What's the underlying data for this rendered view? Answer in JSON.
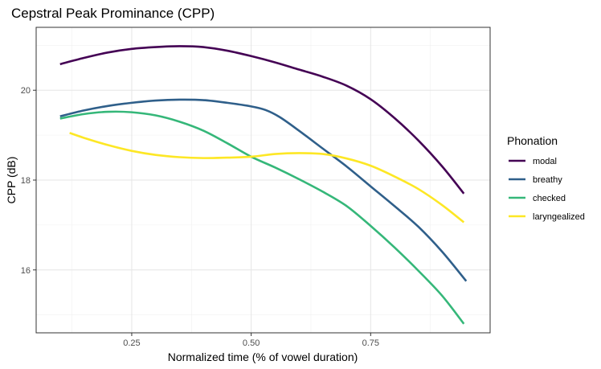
{
  "chart_data": {
    "type": "line",
    "title": "Cepstral Peak Prominance (CPP)",
    "xlabel": "Normalized time (% of vowel duration)",
    "ylabel": "CPP (dB)",
    "xlim": [
      0.05,
      1.0
    ],
    "ylim": [
      14.6,
      21.4
    ],
    "x_ticks": [
      {
        "value": 0.25,
        "label": "0.25"
      },
      {
        "value": 0.5,
        "label": "0.50"
      },
      {
        "value": 0.75,
        "label": "0.75"
      }
    ],
    "y_ticks": [
      {
        "value": 16,
        "label": "16"
      },
      {
        "value": 18,
        "label": "18"
      },
      {
        "value": 20,
        "label": "20"
      }
    ],
    "grid": true,
    "legend": {
      "title": "Phonation",
      "position": "right"
    },
    "series": [
      {
        "name": "modal",
        "color": "#440154",
        "points": [
          [
            0.1,
            20.58
          ],
          [
            0.15,
            20.72
          ],
          [
            0.2,
            20.84
          ],
          [
            0.25,
            20.92
          ],
          [
            0.3,
            20.96
          ],
          [
            0.35,
            20.98
          ],
          [
            0.4,
            20.96
          ],
          [
            0.45,
            20.88
          ],
          [
            0.5,
            20.76
          ],
          [
            0.55,
            20.62
          ],
          [
            0.6,
            20.46
          ],
          [
            0.65,
            20.3
          ],
          [
            0.7,
            20.1
          ],
          [
            0.75,
            19.8
          ],
          [
            0.8,
            19.38
          ],
          [
            0.85,
            18.88
          ],
          [
            0.9,
            18.3
          ],
          [
            0.945,
            17.7
          ]
        ]
      },
      {
        "name": "breathy",
        "color": "#2F5F8A",
        "points": [
          [
            0.1,
            19.42
          ],
          [
            0.15,
            19.55
          ],
          [
            0.2,
            19.65
          ],
          [
            0.25,
            19.72
          ],
          [
            0.3,
            19.77
          ],
          [
            0.35,
            19.79
          ],
          [
            0.4,
            19.78
          ],
          [
            0.45,
            19.72
          ],
          [
            0.5,
            19.64
          ],
          [
            0.53,
            19.56
          ],
          [
            0.56,
            19.4
          ],
          [
            0.6,
            19.1
          ],
          [
            0.65,
            18.7
          ],
          [
            0.7,
            18.3
          ],
          [
            0.75,
            17.86
          ],
          [
            0.8,
            17.42
          ],
          [
            0.85,
            16.96
          ],
          [
            0.9,
            16.4
          ],
          [
            0.95,
            15.75
          ]
        ]
      },
      {
        "name": "checked",
        "color": "#35B779",
        "points": [
          [
            0.1,
            19.37
          ],
          [
            0.15,
            19.47
          ],
          [
            0.2,
            19.52
          ],
          [
            0.25,
            19.51
          ],
          [
            0.3,
            19.44
          ],
          [
            0.35,
            19.3
          ],
          [
            0.4,
            19.1
          ],
          [
            0.45,
            18.82
          ],
          [
            0.5,
            18.52
          ],
          [
            0.55,
            18.28
          ],
          [
            0.6,
            18.02
          ],
          [
            0.65,
            17.74
          ],
          [
            0.7,
            17.42
          ],
          [
            0.75,
            16.98
          ],
          [
            0.8,
            16.5
          ],
          [
            0.85,
            15.98
          ],
          [
            0.9,
            15.42
          ],
          [
            0.945,
            14.8
          ]
        ]
      },
      {
        "name": "laryngealized",
        "color": "#FDE725",
        "points": [
          [
            0.12,
            19.05
          ],
          [
            0.15,
            18.94
          ],
          [
            0.2,
            18.78
          ],
          [
            0.25,
            18.65
          ],
          [
            0.3,
            18.56
          ],
          [
            0.35,
            18.51
          ],
          [
            0.4,
            18.49
          ],
          [
            0.45,
            18.5
          ],
          [
            0.5,
            18.52
          ],
          [
            0.55,
            18.58
          ],
          [
            0.6,
            18.6
          ],
          [
            0.65,
            18.58
          ],
          [
            0.7,
            18.48
          ],
          [
            0.75,
            18.32
          ],
          [
            0.8,
            18.08
          ],
          [
            0.85,
            17.8
          ],
          [
            0.9,
            17.44
          ],
          [
            0.945,
            17.06
          ]
        ]
      }
    ]
  }
}
